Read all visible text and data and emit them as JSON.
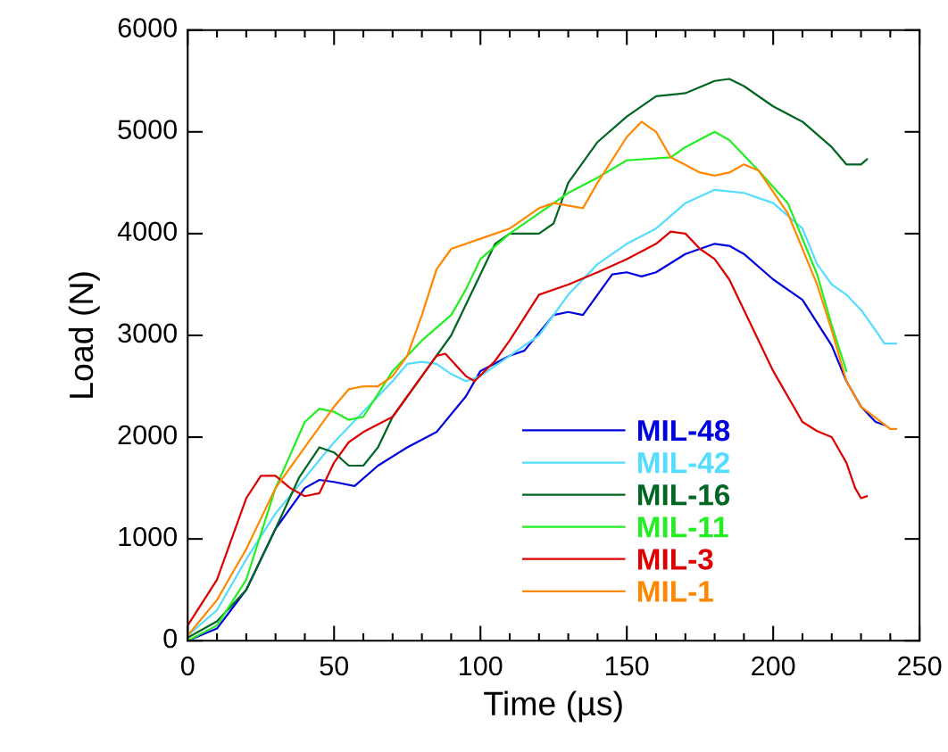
{
  "chart_data": {
    "type": "line",
    "xlabel": "Time (µs)",
    "ylabel": "Load (N)",
    "xlim": [
      0,
      250
    ],
    "xticks": [
      0,
      50,
      100,
      150,
      200,
      250
    ],
    "ylim": [
      0,
      6000
    ],
    "yticks": [
      0,
      1000,
      2000,
      3000,
      4000,
      5000,
      6000
    ],
    "grid": false,
    "legend": "bottom",
    "marker": "none",
    "line_style": "solid",
    "series": [
      {
        "name": "MIL-48",
        "color": "#0000dd",
        "x": [
          0,
          10,
          20,
          30,
          40,
          45,
          50,
          57,
          65,
          75,
          85,
          95,
          100,
          110,
          115,
          125,
          130,
          135,
          145,
          150,
          155,
          160,
          170,
          180,
          185,
          190,
          200,
          210,
          220,
          225,
          230,
          235,
          238
        ],
        "values": [
          0,
          120,
          500,
          1100,
          1500,
          1580,
          1560,
          1520,
          1720,
          1900,
          2050,
          2400,
          2650,
          2800,
          2850,
          3200,
          3230,
          3200,
          3600,
          3620,
          3580,
          3620,
          3800,
          3900,
          3880,
          3800,
          3550,
          3350,
          2900,
          2550,
          2300,
          2150,
          2120
        ]
      },
      {
        "name": "MIL-42",
        "color": "#55ddff",
        "x": [
          0,
          10,
          20,
          30,
          40,
          50,
          60,
          70,
          75,
          80,
          85,
          90,
          95,
          100,
          110,
          120,
          130,
          140,
          150,
          160,
          170,
          180,
          190,
          200,
          210,
          215,
          220,
          225,
          230,
          235,
          238,
          242
        ],
        "values": [
          50,
          300,
          800,
          1250,
          1600,
          1950,
          2250,
          2550,
          2720,
          2740,
          2720,
          2620,
          2550,
          2600,
          2800,
          3000,
          3400,
          3700,
          3900,
          4050,
          4300,
          4430,
          4400,
          4300,
          4050,
          3700,
          3500,
          3400,
          3250,
          3050,
          2920,
          2920
        ]
      },
      {
        "name": "MIL-16",
        "color": "#006622",
        "x": [
          0,
          10,
          20,
          30,
          38,
          45,
          50,
          55,
          60,
          65,
          70,
          80,
          90,
          100,
          105,
          110,
          120,
          125,
          130,
          140,
          150,
          160,
          170,
          180,
          185,
          190,
          200,
          210,
          220,
          225,
          230,
          232
        ],
        "values": [
          30,
          190,
          500,
          1100,
          1600,
          1900,
          1850,
          1720,
          1720,
          1900,
          2200,
          2600,
          3000,
          3600,
          3900,
          4000,
          4000,
          4100,
          4500,
          4900,
          5150,
          5350,
          5380,
          5500,
          5520,
          5450,
          5250,
          5100,
          4850,
          4680,
          4680,
          4730
        ]
      },
      {
        "name": "MIL-11",
        "color": "#22ee22",
        "x": [
          0,
          10,
          20,
          30,
          40,
          45,
          50,
          55,
          60,
          70,
          80,
          90,
          95,
          100,
          110,
          120,
          130,
          140,
          150,
          165,
          170,
          180,
          185,
          195,
          205,
          215,
          220,
          225
        ],
        "values": [
          0,
          150,
          600,
          1500,
          2150,
          2280,
          2250,
          2170,
          2200,
          2650,
          2950,
          3200,
          3450,
          3750,
          4000,
          4200,
          4400,
          4550,
          4720,
          4750,
          4850,
          5000,
          4920,
          4620,
          4300,
          3600,
          3100,
          2650
        ]
      },
      {
        "name": "MIL-3",
        "color": "#dd0000",
        "x": [
          0,
          10,
          15,
          20,
          25,
          30,
          35,
          40,
          45,
          50,
          55,
          60,
          70,
          80,
          85,
          88,
          95,
          98,
          105,
          110,
          120,
          130,
          140,
          150,
          160,
          165,
          170,
          175,
          180,
          185,
          190,
          200,
          210,
          215,
          220,
          225,
          228,
          230,
          232
        ],
        "values": [
          150,
          600,
          1000,
          1400,
          1620,
          1620,
          1500,
          1420,
          1450,
          1750,
          1950,
          2050,
          2200,
          2600,
          2800,
          2820,
          2600,
          2550,
          2750,
          2950,
          3400,
          3500,
          3620,
          3750,
          3900,
          4020,
          4000,
          3850,
          3750,
          3550,
          3250,
          2650,
          2150,
          2060,
          2000,
          1750,
          1500,
          1400,
          1420
        ]
      },
      {
        "name": "MIL-1",
        "color": "#ff8800",
        "x": [
          0,
          10,
          20,
          30,
          40,
          50,
          55,
          60,
          65,
          70,
          75,
          80,
          85,
          90,
          100,
          110,
          120,
          125,
          135,
          140,
          150,
          155,
          160,
          165,
          175,
          180,
          185,
          190,
          195,
          205,
          215,
          220,
          225,
          230,
          240,
          242
        ],
        "values": [
          50,
          400,
          900,
          1500,
          1900,
          2300,
          2470,
          2500,
          2500,
          2600,
          2800,
          3200,
          3650,
          3850,
          3950,
          4050,
          4250,
          4300,
          4250,
          4500,
          4950,
          5100,
          5000,
          4750,
          4600,
          4570,
          4600,
          4680,
          4620,
          4200,
          3500,
          3050,
          2550,
          2300,
          2080,
          2080
        ]
      }
    ]
  }
}
